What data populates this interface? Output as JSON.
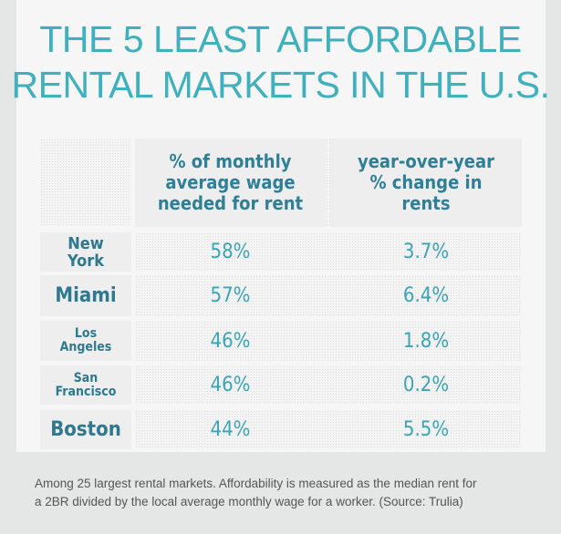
{
  "title": {
    "line1": "THE 5 LEAST AFFORDABLE",
    "line2": "RENTAL MARKETS IN THE U.S."
  },
  "colors": {
    "accent": "#3fb0bd",
    "header_text": "#2e7f97",
    "background": "#e5e6e6"
  },
  "chart_data": {
    "type": "table",
    "columns": [
      "",
      "% of monthly average wage needed for rent",
      "year-over-year % change in rents"
    ],
    "rows": [
      {
        "city": "New York",
        "wage_pct": "58%",
        "yoy": "3.7%"
      },
      {
        "city": "Miami",
        "wage_pct": "57%",
        "yoy": "6.4%"
      },
      {
        "city": "Los Angeles",
        "wage_pct": "46%",
        "yoy": "1.8%"
      },
      {
        "city": "San Francisco",
        "wage_pct": "46%",
        "yoy": "0.2%"
      },
      {
        "city": "Boston",
        "wage_pct": "44%",
        "yoy": "5.5%"
      }
    ]
  },
  "footnote": {
    "line1": "Among 25 largest rental markets. Affordability is measured as the median rent for",
    "line2": "a 2BR divided by the local average monthly wage for a worker. (Source: Trulia)"
  }
}
